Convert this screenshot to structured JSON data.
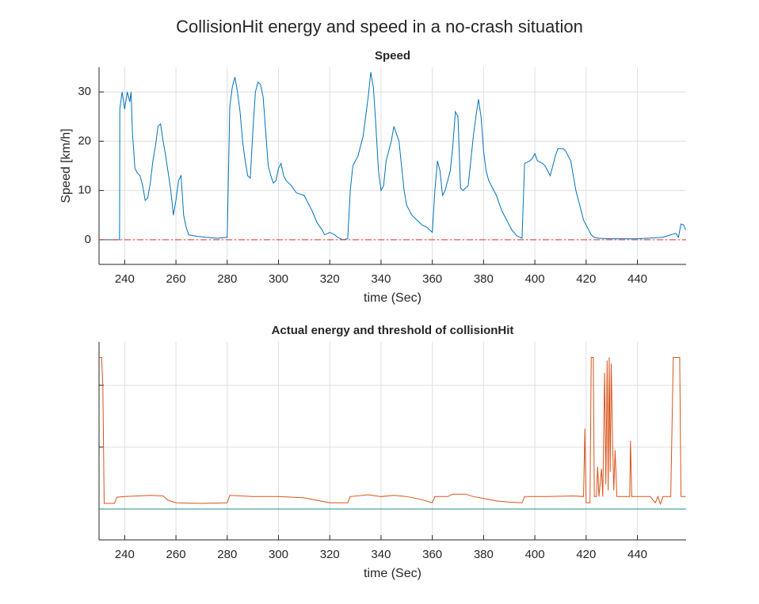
{
  "title": "CollisionHit energy and speed in a no-crash situation",
  "chart_data": [
    {
      "type": "line",
      "title": "Speed",
      "xlabel": "time (Sec)",
      "ylabel": "Speed [km/h]",
      "xlim": [
        230,
        459
      ],
      "xticks": [
        240,
        260,
        280,
        300,
        320,
        340,
        360,
        380,
        400,
        420,
        440
      ],
      "ylim": [
        -5,
        35
      ],
      "yticks": [
        0,
        10,
        20,
        30
      ],
      "grid": true,
      "ytick_labels": true,
      "series": [
        {
          "color": "#0072bd",
          "style": "solid",
          "x": [
            230,
            238,
            238.1,
            239,
            240,
            241,
            242,
            242.5,
            243,
            244,
            245,
            246,
            247,
            248,
            249,
            250,
            251,
            252,
            253,
            254,
            255,
            256,
            257,
            258,
            259,
            260,
            261,
            262,
            263,
            264,
            265,
            268,
            272,
            276,
            280,
            281,
            282,
            283,
            284,
            285,
            286,
            287,
            288,
            289,
            290,
            291,
            292,
            293,
            294,
            295,
            296,
            297,
            298,
            299,
            300,
            301,
            302,
            303,
            305,
            307,
            310,
            312,
            313,
            315,
            317,
            318,
            320,
            322,
            323,
            325,
            327,
            328,
            329,
            330,
            331,
            332,
            333,
            334,
            335,
            336,
            337,
            338,
            339,
            340,
            341,
            342,
            344,
            345,
            347,
            348,
            349,
            350,
            352,
            354,
            356,
            358,
            360,
            361,
            362,
            363,
            364,
            365,
            367,
            368,
            369,
            370,
            371,
            372,
            374,
            375,
            376,
            377,
            378,
            379,
            380,
            381,
            382,
            383,
            385,
            387,
            389,
            391,
            393,
            395,
            396,
            398,
            399,
            400,
            401,
            403,
            404,
            405,
            406,
            407,
            408,
            409,
            411,
            412,
            413,
            414,
            415,
            416,
            417,
            418,
            419,
            420,
            421,
            422,
            423,
            425,
            430,
            440,
            450,
            453,
            455,
            456,
            457,
            458,
            458.8
          ],
          "values": [
            0,
            0,
            26.5,
            30,
            26.5,
            30,
            28,
            30,
            22,
            14.5,
            13.5,
            13,
            11,
            8,
            8.5,
            11.5,
            16,
            19,
            23,
            23.5,
            20,
            17,
            13.5,
            10,
            5,
            8,
            12,
            13,
            5,
            2.5,
            1,
            0.7,
            0.5,
            0.3,
            0.5,
            27,
            31,
            33,
            30,
            26,
            20,
            16,
            13,
            12.5,
            22,
            30,
            32,
            31.5,
            29,
            22,
            15,
            13,
            11.5,
            12,
            14.5,
            15.5,
            13,
            12,
            11,
            9.5,
            9,
            7,
            6,
            3.5,
            2,
            1,
            1.5,
            1,
            0.5,
            0,
            0.2,
            10,
            15,
            16,
            17,
            19,
            21,
            25,
            29,
            34,
            31,
            23,
            14,
            10,
            11,
            16,
            20,
            23,
            20,
            15,
            10,
            7,
            5,
            4,
            3,
            2.5,
            1.5,
            10,
            16,
            14,
            9,
            10,
            14,
            19,
            26,
            25,
            10.5,
            10,
            11,
            16,
            21,
            25,
            28.5,
            25,
            18,
            14,
            12,
            11,
            9,
            6,
            4,
            2,
            0.8,
            0.3,
            15.5,
            16,
            16.5,
            17.5,
            16,
            15.5,
            15,
            14,
            13,
            15,
            17,
            18.5,
            18.5,
            18,
            17,
            16,
            13,
            10,
            8,
            6,
            4,
            3,
            2,
            1,
            0.5,
            0.3,
            0.2,
            0.2,
            0.5,
            1,
            1.3,
            0.5,
            3.2,
            3,
            2
          ]
        },
        {
          "color": "#e8352b",
          "style": "dashdot",
          "x": [
            230,
            459
          ],
          "values": [
            0,
            0
          ]
        }
      ]
    },
    {
      "type": "line",
      "title": "Actual energy and threshold of collisionHit",
      "xlabel": "time (Sec)",
      "xlim": [
        230,
        459
      ],
      "xticks": [
        240,
        260,
        280,
        300,
        320,
        340,
        360,
        380,
        400,
        420,
        440
      ],
      "ylim": [
        -0.5,
        2.7
      ],
      "yticks": [
        0,
        1,
        2
      ],
      "grid": true,
      "ytick_labels": false,
      "series": [
        {
          "color": "#d95319",
          "style": "solid",
          "x": [
            230,
            231,
            231.5,
            232,
            236,
            237,
            240,
            250,
            255,
            257,
            260,
            270,
            280,
            281,
            290,
            300,
            310,
            315,
            320,
            327,
            328,
            335,
            340,
            345,
            350,
            355,
            360,
            361,
            366,
            368,
            373,
            376,
            380,
            385,
            390,
            395,
            396,
            405,
            415,
            419,
            419.5,
            420,
            421.5,
            422,
            422.8,
            423.2,
            424,
            424.5,
            425,
            426,
            426.5,
            427.2,
            427.7,
            428.2,
            428.6,
            429,
            429.4,
            429.8,
            430.3,
            430.8,
            431.3,
            432,
            437,
            437.3,
            437.8,
            445,
            447,
            448,
            449,
            450,
            453,
            454,
            456.5,
            457,
            458.8
          ],
          "values": [
            2.45,
            2.45,
            1.96,
            0.09,
            0.09,
            0.19,
            0.2,
            0.22,
            0.21,
            0.14,
            0.1,
            0.09,
            0.1,
            0.22,
            0.2,
            0.2,
            0.18,
            0.14,
            0.1,
            0.1,
            0.2,
            0.23,
            0.2,
            0.22,
            0.2,
            0.16,
            0.1,
            0.2,
            0.2,
            0.24,
            0.24,
            0.2,
            0.17,
            0.13,
            0.11,
            0.1,
            0.2,
            0.2,
            0.21,
            0.2,
            1.3,
            0.1,
            0.1,
            2.45,
            2.45,
            0.2,
            0.2,
            0.68,
            0.2,
            0.65,
            0.2,
            2.2,
            0.4,
            2.4,
            0.3,
            2.45,
            0.6,
            2.35,
            1.1,
            0.3,
            0.95,
            0.2,
            0.2,
            1.1,
            0.2,
            0.2,
            0.1,
            0.2,
            0.08,
            0.2,
            0.2,
            2.45,
            2.45,
            0.2,
            0.2
          ]
        },
        {
          "color": "#1f8f8f",
          "style": "solid",
          "x": [
            230,
            459
          ],
          "values": [
            0,
            0
          ]
        }
      ]
    }
  ]
}
